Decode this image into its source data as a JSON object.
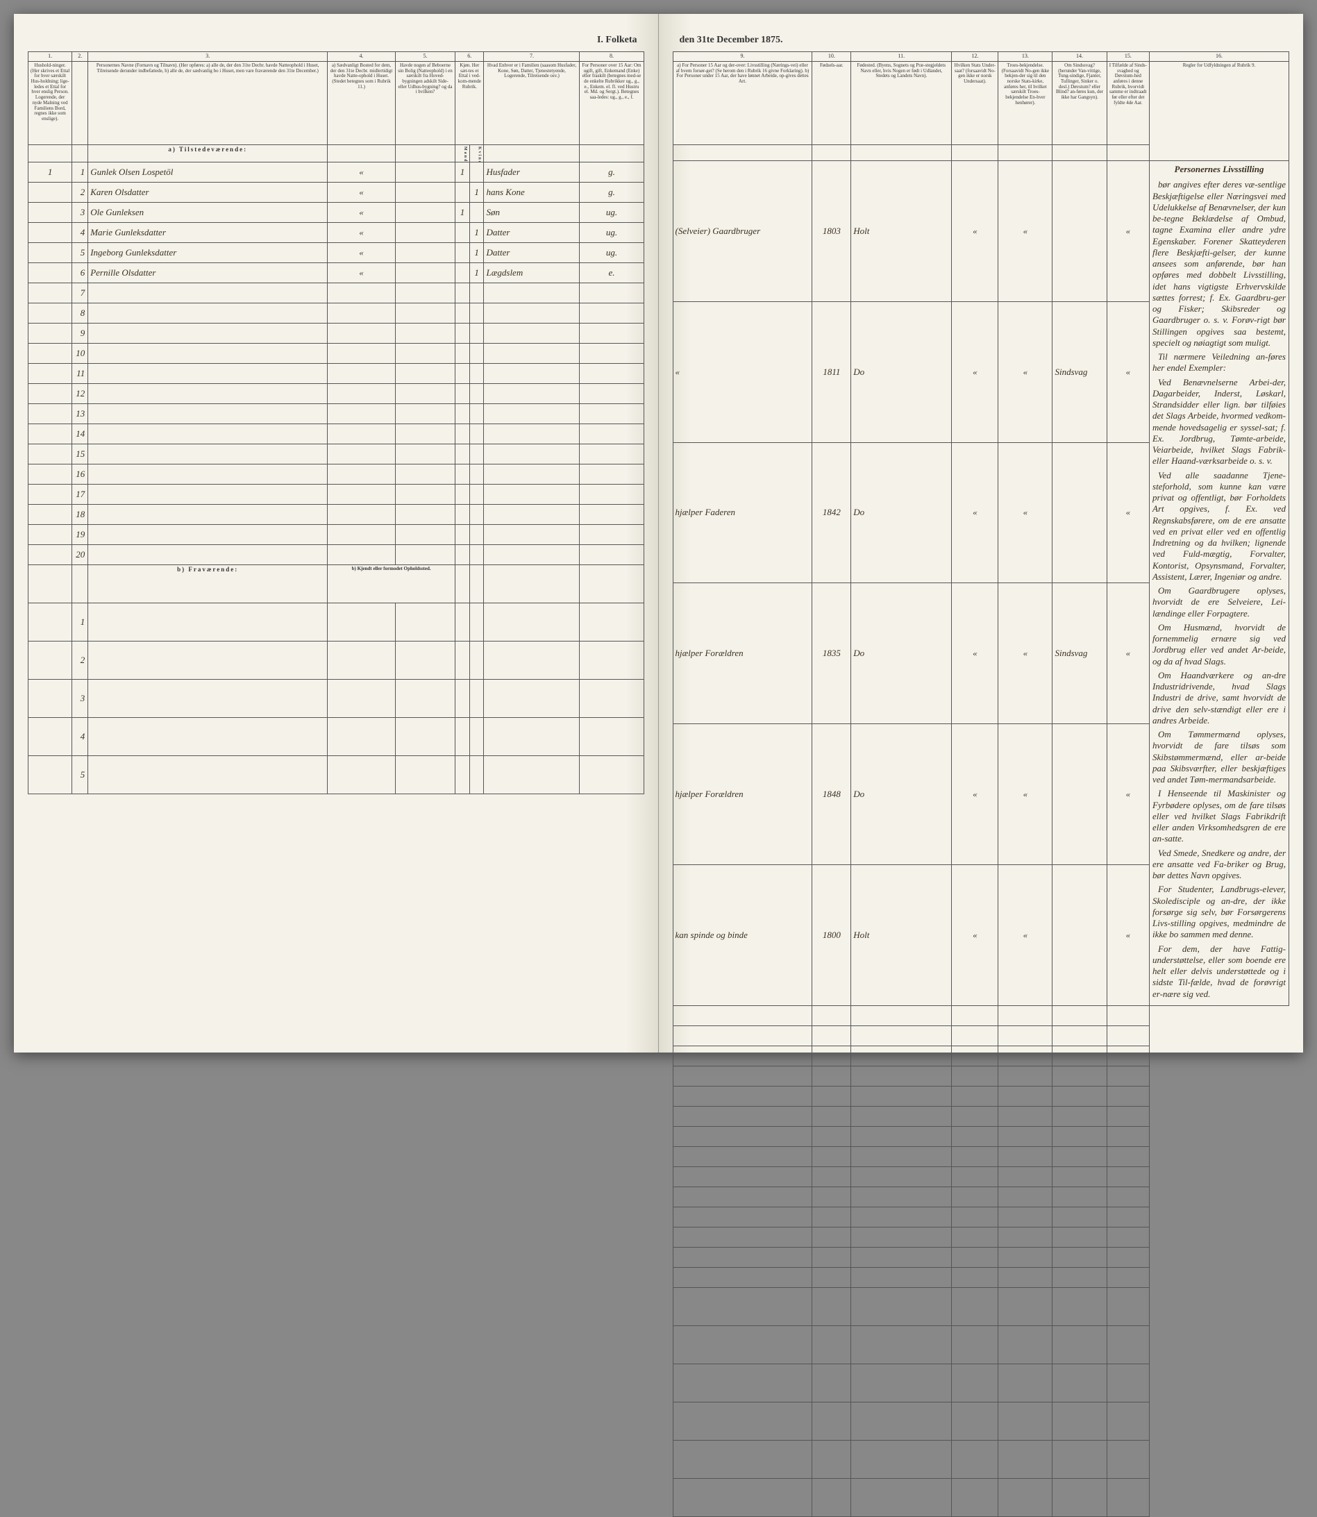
{
  "title_left": "I. Folketa",
  "title_right": "den 31te December 1875.",
  "columns_left": {
    "nums": [
      "1.",
      "2.",
      "3.",
      "4.",
      "5.",
      "6.",
      "7.",
      "8."
    ],
    "h1": "Hushold-ninger. (Her skrives et Ettal for hver særskilt Hus-holdning; lige-ledes et Ettal for hver enslig Person. Logerende, der nyde Malning ved Familiens Bord, regnes ikke som enslige).",
    "h2": "",
    "h3": "Personernes Navne (Fornavn og Tilnavn). (Her opføres: a) alle de, der den 31te Decbr. havde Natteophold i Huset, Tilreisende derunder indbefattede, b) alle de, der sædvanlig bo i Huset, men vare fraværende den 31te December.)",
    "h4": "a) Sædvanligt Bosted for dem, der den 31te Decbr. midlertidigt havde Natte-ophold i Huset. (Stedet betegnes som i Rubrik 11.)",
    "h5": "Havde nogen af Beboerne sin Bolig (Natteophold) i en særskilt fra Hoved-bygningen adskilt Side- eller Udhus-bygning? og da i hvilken?",
    "h6": "Kjøn. Her sæt-tes et Ettal i ved-kom-mende Rubrik.",
    "h6a": "Mandkjøn.",
    "h6b": "Kvindekjøn.",
    "h7": "Hvad Enhver er i Familien (saasom Husfader, Kone, Søn, Datter, Tjenestetyende, Logerende, Tilreisende osv.)",
    "h8": "For Personer over 15 Aar: Om ugift, gift, Enkemand (Enke) eller fraskilt (betegnes med-se de enkelte Rubrikker ug., g., e., Enkem. el. fl. ved Hustru el. Md. og Sergt.). Betegnes saa-ledes: ug., g., e., f."
  },
  "columns_right": {
    "nums": [
      "9.",
      "10.",
      "11.",
      "12.",
      "13.",
      "14.",
      "15.",
      "16."
    ],
    "h9": "a) For Personer 15 Aar og der-over: Livsstilling (Nærings-vei) eller af hvem forsør-get? (Se herom den i Rubrik 16 givne Forklaring). b) For Personer under 15 Aar, der have lønnet Arbeide, op-gives dettes Art.",
    "h10": "Fødsels-aar.",
    "h11": "Fødested. (Byens, Sognets og Præ-stegjeldets Navn eller, hvis Nogen er født i Udlandet, Stedets og Landets Navn).",
    "h12": "Hvilken Stats Under-saat? (forsaavidt No-gen ikke er norsk Undersaat).",
    "h13": "Troes-bekjendelse. (Forsaavidt No-gen ikke bekjen-der sig til den norske Stats-kirke, anføres her, til hvilket særskilt Troes-bekjendelse En-hver henhører).",
    "h14": "Om Sindssvag? (herunder Van-vittige, Tung-sindige, Fjanter, Tullinger, Sinker o. desl.) Døvstum? eller Blind? an-føres kun, der ikke har Gangsyn).",
    "h15": "I Tilfælde af Sinds-svaghed og Døvstum-hed anføres i denne Rubrik, hvorvidt samme er indtraadt før eller efter det fyldte 4de Aar.",
    "h16": "Regler for Udfyldningen af Rubrik 9."
  },
  "section_a": "a) Tilstedeværende:",
  "section_b": "b) Fraværende:",
  "section_b_right": "b) Kjendt eller formodet Opholdssted.",
  "rows": [
    {
      "n": "1",
      "hh": "1",
      "name": "Gunlek Olsen Lospetöl",
      "c4": "«",
      "c5": "",
      "c6a": "1",
      "c6b": "",
      "c7": "Husfader",
      "c8": "g.",
      "c9": "(Selveier) Gaardbruger",
      "c10": "1803",
      "c11": "Holt",
      "c12": "«",
      "c13": "«",
      "c14": "",
      "c15": "«"
    },
    {
      "n": "2",
      "hh": "",
      "name": "Karen Olsdatter",
      "c4": "«",
      "c5": "",
      "c6a": "",
      "c6b": "1",
      "c7": "hans Kone",
      "c8": "g.",
      "c9": "«",
      "c10": "1811",
      "c11": "Do",
      "c12": "«",
      "c13": "«",
      "c14": "Sindsvag",
      "c15": "«"
    },
    {
      "n": "3",
      "hh": "",
      "name": "Ole Gunleksen",
      "c4": "«",
      "c5": "",
      "c6a": "1",
      "c6b": "",
      "c7": "Søn",
      "c8": "ug.",
      "c9": "hjælper Faderen",
      "c10": "1842",
      "c11": "Do",
      "c12": "«",
      "c13": "«",
      "c14": "",
      "c15": "«"
    },
    {
      "n": "4",
      "hh": "",
      "name": "Marie Gunleksdatter",
      "c4": "«",
      "c5": "",
      "c6a": "",
      "c6b": "1",
      "c7": "Datter",
      "c8": "ug.",
      "c9": "hjælper Forældren",
      "c10": "1835",
      "c11": "Do",
      "c12": "«",
      "c13": "«",
      "c14": "Sindsvag",
      "c15": "«"
    },
    {
      "n": "5",
      "hh": "",
      "name": "Ingeborg Gunleksdatter",
      "c4": "«",
      "c5": "",
      "c6a": "",
      "c6b": "1",
      "c7": "Datter",
      "c8": "ug.",
      "c9": "hjælper Forældren",
      "c10": "1848",
      "c11": "Do",
      "c12": "«",
      "c13": "«",
      "c14": "",
      "c15": "«"
    },
    {
      "n": "6",
      "hh": "",
      "name": "Pernille Olsdatter",
      "c4": "«",
      "c5": "",
      "c6a": "",
      "c6b": "1",
      "c7": "Lægdslem",
      "c8": "e.",
      "c9": "kan spinde og binde",
      "c10": "1800",
      "c11": "Holt",
      "c12": "«",
      "c13": "«",
      "c14": "",
      "c15": "«"
    }
  ],
  "empty_a": [
    "7",
    "8",
    "9",
    "10",
    "11",
    "12",
    "13",
    "14",
    "15",
    "16",
    "17",
    "18",
    "19",
    "20"
  ],
  "empty_b": [
    "1",
    "2",
    "3",
    "4",
    "5"
  ],
  "sidebar_title": "Personernes Livsstilling",
  "sidebar_paras": [
    "bør angives efter deres væ-sentlige Beskjæftigelse eller Næringsvei med Udelukkelse af Benævnelser, der kun be-tegne Beklædelse af Ombud, tagne Examina eller andre ydre Egenskaber. Forener Skatteyderen flere Beskjæfti-gelser, der kunne ansees som anførende, bør han opføres med dobbelt Livsstilling, idet hans vigtigste Erhvervskilde sættes forrest; f. Ex. Gaardbru-ger og Fisker; Skibsreder og Gaardbruger o. s. v. Forøv-rigt bør Stillingen opgives saa bestemt, specielt og nøiagtigt som muligt.",
    "Til nærmere Veiledning an-føres her endel Exempler:",
    "Ved Benævnelserne Arbei-der, Dagarbeider, Inderst, Løskarl, Strandsidder eller lign. bør tilføies det Slags Arbeide, hvormed vedkom-mende hovedsagelig er syssel-sat; f. Ex. Jordbrug, Tømte-arbeide, Veiarbeide, hvilket Slags Fabrik- eller Haand-værksarbeide o. s. v.",
    "Ved alle saadanne Tjene-steforhold, som kunne kan være privat og offentligt, bør Forholdets Art opgives, f. Ex. ved Regnskabsførere, om de ere ansatte ved en privat eller ved en offentlig Indretning og da hvilken; lignende ved Fuld-mægtig, Forvalter, Kontorist, Opsynsmand, Forvalter, Assistent, Lærer, Ingeniør og andre.",
    "Om Gaardbrugere oplyses, hvorvidt de ere Selveiere, Lei-lændinge eller Forpagtere.",
    "Om Husmænd, hvorvidt de fornemmelig ernære sig ved Jordbrug eller ved andet Ar-beide, og da af hvad Slags.",
    "Om Haandværkere og an-dre Industridrivende, hvad Slags Industri de drive, samt hvorvidt de drive den selv-stændigt eller ere i andres Arbeide.",
    "Om Tømmermænd oplyses, hvorvidt de fare tilsøs som Skibstømmermænd, eller ar-beide paa Skibsværfter, eller beskjæftiges ved andet Tøm-mermandsarbeide.",
    "I Henseende til Maskinister og Fyrbødere oplyses, om de fare tilsøs eller ved hvilket Slags Fabrikdrift eller anden Virksomhedsgren de ere an-satte.",
    "Ved Smede, Snedkere og andre, der ere ansatte ved Fa-briker og Brug, bør dettes Navn opgives.",
    "For Studenter, Landbrugs-elever, Skoledisciple og an-dre, der ikke forsørge sig selv, bør Forsørgerens Livs-stilling opgives, medmindre de ikke bo sammen med denne.",
    "For dem, der have Fattig-understøttelse, eller som boende ere helt eller delvis understøttede og i sidste Til-fælde, hvad de forøvrigt er-nære sig ved."
  ]
}
